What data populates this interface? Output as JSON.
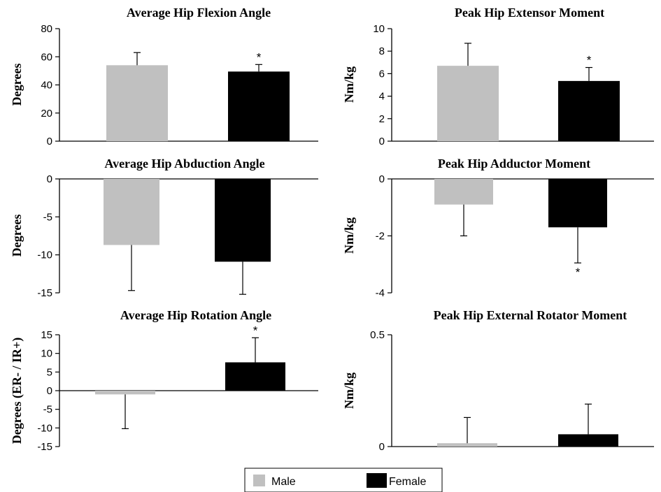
{
  "colors": {
    "male": "#c0c0c0",
    "female": "#000000"
  },
  "legend": {
    "male_label": "Male",
    "female_label": "Female"
  },
  "chart_data": [
    {
      "type": "bar",
      "title": "Average Hip Flexion Angle",
      "ylabel": "Degrees",
      "ylim": [
        0,
        80
      ],
      "yticks": [
        0,
        20,
        40,
        60,
        80
      ],
      "series": [
        {
          "name": "Male",
          "value": 54,
          "error": 9,
          "sig": ""
        },
        {
          "name": "Female",
          "value": 49.5,
          "error": 5,
          "sig": "*"
        }
      ]
    },
    {
      "type": "bar",
      "title": "Peak Hip Extensor Moment",
      "ylabel": "Nm/kg",
      "ylim": [
        0,
        10
      ],
      "yticks": [
        0,
        2,
        4,
        6,
        8,
        10
      ],
      "series": [
        {
          "name": "Male",
          "value": 6.7,
          "error": 2.0,
          "sig": ""
        },
        {
          "name": "Female",
          "value": 5.35,
          "error": 1.2,
          "sig": "*"
        }
      ]
    },
    {
      "type": "bar",
      "title": "Average Hip Abduction Angle",
      "ylabel": "Degrees",
      "ylim": [
        -15,
        0
      ],
      "yticks": [
        -15,
        -10,
        -5,
        0
      ],
      "series": [
        {
          "name": "Male",
          "value": -8.7,
          "error": 6.0,
          "sig": ""
        },
        {
          "name": "Female",
          "value": -10.9,
          "error": 4.3,
          "sig": ""
        }
      ]
    },
    {
      "type": "bar",
      "title": "Peak Hip Adductor Moment",
      "ylabel": "Nm/kg",
      "ylim": [
        -4,
        0
      ],
      "yticks": [
        -4,
        -2,
        0
      ],
      "series": [
        {
          "name": "Male",
          "value": -0.9,
          "error": 1.1,
          "sig": ""
        },
        {
          "name": "Female",
          "value": -1.7,
          "error": 1.25,
          "sig": "*"
        }
      ]
    },
    {
      "type": "bar",
      "title": "Average Hip Rotation Angle",
      "ylabel": "Degrees (ER- / IR+)",
      "ylim": [
        -15,
        15
      ],
      "yticks": [
        -15,
        -10,
        -5,
        0,
        5,
        10,
        15
      ],
      "series": [
        {
          "name": "Male",
          "value": -1,
          "error": 9.2,
          "sig": ""
        },
        {
          "name": "Female",
          "value": 7.6,
          "error": 6.6,
          "sig": "*"
        }
      ]
    },
    {
      "type": "bar",
      "title": "Peak Hip External Rotator Moment",
      "ylabel": "Nm/kg",
      "ylim": [
        0,
        0.5
      ],
      "yticks": [
        0,
        0.5
      ],
      "series": [
        {
          "name": "Male",
          "value": 0.015,
          "error": 0.115,
          "sig": ""
        },
        {
          "name": "Female",
          "value": 0.055,
          "error": 0.135,
          "sig": ""
        }
      ]
    }
  ]
}
